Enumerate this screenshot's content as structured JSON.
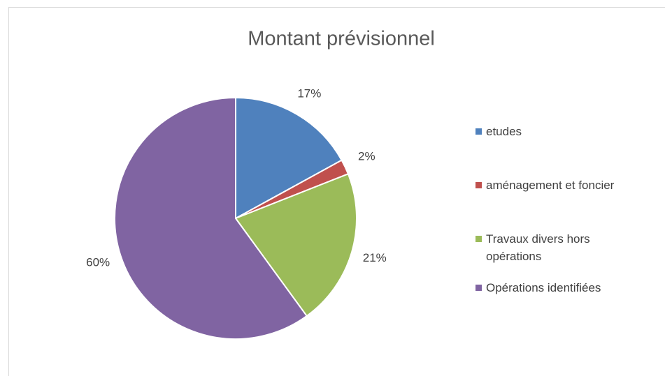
{
  "chart_data": {
    "type": "pie",
    "title": "Montant prévisionnel",
    "categories": [
      "etudes",
      "aménagement et foncier",
      "Travaux divers hors opérations",
      "Opérations identifiées"
    ],
    "values": [
      17,
      2,
      21,
      60
    ],
    "value_labels": [
      "17%",
      "2%",
      "21%",
      "60%"
    ],
    "colors": [
      "#4f81bd",
      "#c0504d",
      "#9bbb59",
      "#8064a2"
    ],
    "legend": "right"
  }
}
